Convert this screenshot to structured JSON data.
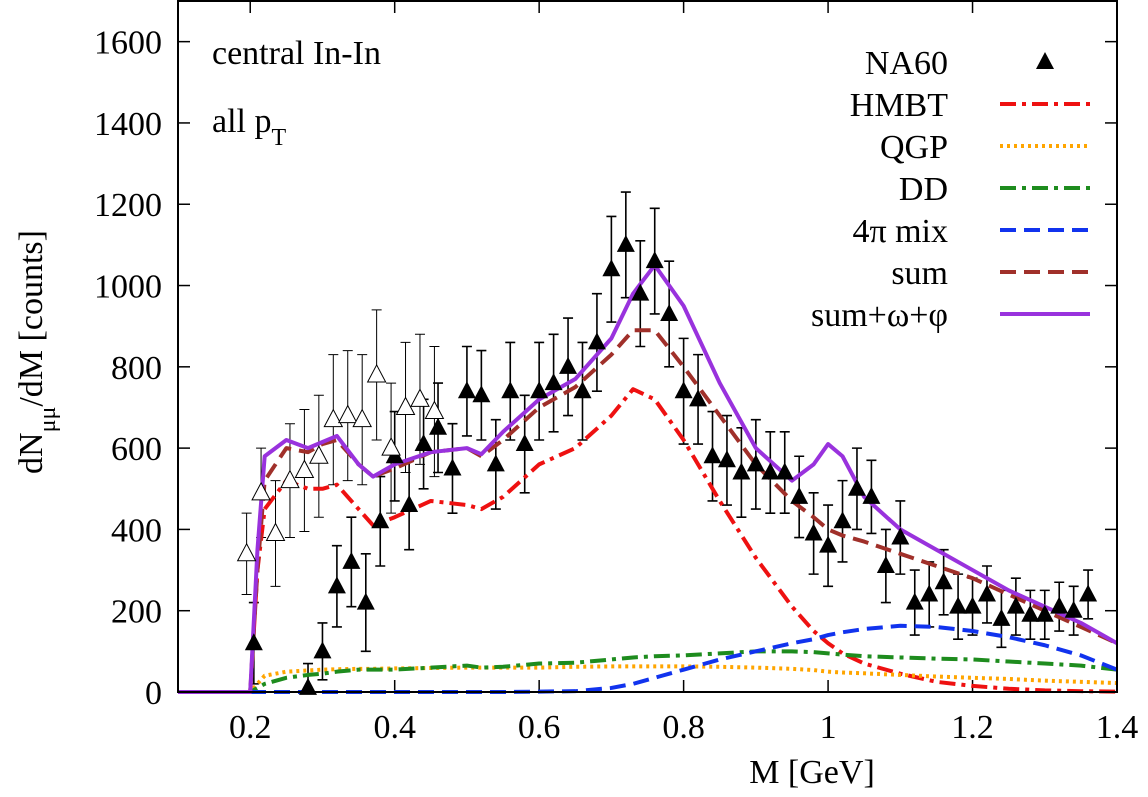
{
  "chart_data": {
    "type": "line",
    "xlabel": "M [GeV]",
    "ylabel": {
      "main": "dN",
      "sub": "μμ",
      "rest": "/dM [counts]"
    },
    "annotations": [
      {
        "text": "central In-In"
      },
      {
        "text": "all p",
        "sub": "T"
      }
    ],
    "xlim": [
      0.1,
      1.4
    ],
    "xticks": [
      0.2,
      0.4,
      0.6,
      0.8,
      1,
      1.2,
      1.4
    ],
    "ylim": [
      0,
      1700
    ],
    "yticks": [
      0,
      200,
      400,
      600,
      800,
      1000,
      1200,
      1400,
      1600
    ],
    "legend": "top-right",
    "x": [
      0.1,
      0.15,
      0.2,
      0.21,
      0.22,
      0.25,
      0.28,
      0.3,
      0.32,
      0.35,
      0.37,
      0.4,
      0.45,
      0.5,
      0.52,
      0.55,
      0.6,
      0.65,
      0.7,
      0.73,
      0.76,
      0.8,
      0.85,
      0.9,
      0.95,
      0.98,
      1.0,
      1.02,
      1.05,
      1.1,
      1.15,
      1.2,
      1.25,
      1.3,
      1.35,
      1.4
    ],
    "points": [
      {
        "name": "NA60",
        "marker": "filled",
        "color": "#000000",
        "x": [
          0.205,
          0.28,
          0.3,
          0.32,
          0.34,
          0.36,
          0.38,
          0.4,
          0.42,
          0.44,
          0.46,
          0.48,
          0.5,
          0.52,
          0.54,
          0.56,
          0.58,
          0.6,
          0.62,
          0.64,
          0.66,
          0.68,
          0.7,
          0.72,
          0.74,
          0.76,
          0.78,
          0.8,
          0.82,
          0.84,
          0.86,
          0.88,
          0.9,
          0.92,
          0.94,
          0.96,
          0.98,
          1.0,
          1.02,
          1.04,
          1.06,
          1.08,
          1.1,
          1.12,
          1.14,
          1.16,
          1.18,
          1.2,
          1.22,
          1.24,
          1.26,
          1.28,
          1.3,
          1.32,
          1.34,
          1.36
        ],
        "values": [
          120,
          10,
          100,
          260,
          320,
          220,
          420,
          580,
          460,
          610,
          650,
          550,
          740,
          730,
          560,
          740,
          610,
          740,
          760,
          800,
          740,
          860,
          1040,
          1100,
          980,
          1060,
          930,
          740,
          720,
          580,
          570,
          540,
          560,
          540,
          540,
          480,
          390,
          360,
          420,
          500,
          480,
          310,
          380,
          220,
          240,
          270,
          210,
          210,
          240,
          180,
          210,
          190,
          190,
          210,
          200,
          240
        ],
        "errors": [
          100,
          60,
          70,
          100,
          110,
          120,
          110,
          110,
          110,
          110,
          110,
          110,
          110,
          110,
          110,
          120,
          120,
          120,
          120,
          120,
          120,
          120,
          130,
          130,
          130,
          130,
          130,
          130,
          110,
          110,
          110,
          110,
          110,
          100,
          100,
          100,
          100,
          100,
          100,
          100,
          90,
          90,
          90,
          80,
          80,
          80,
          80,
          70,
          70,
          70,
          70,
          60,
          60,
          60,
          60,
          60
        ]
      },
      {
        "marker": "open",
        "color": "#000000",
        "x": [
          0.195,
          0.215,
          0.235,
          0.255,
          0.275,
          0.295,
          0.315,
          0.335,
          0.355,
          0.375,
          0.395,
          0.415,
          0.435,
          0.455
        ],
        "values": [
          340,
          490,
          390,
          520,
          545,
          580,
          670,
          680,
          670,
          780,
          600,
          700,
          720,
          690
        ],
        "errors": [
          100,
          110,
          130,
          140,
          150,
          150,
          160,
          160,
          160,
          160,
          160,
          160,
          160,
          160
        ]
      }
    ],
    "series": [
      {
        "name": "HMBT",
        "color": "#ee1111",
        "style": "dash-dot",
        "values": [
          0,
          0,
          0,
          300,
          450,
          520,
          500,
          500,
          510,
          450,
          410,
          430,
          470,
          460,
          450,
          480,
          560,
          600,
          680,
          745,
          720,
          620,
          470,
          330,
          210,
          150,
          120,
          95,
          70,
          45,
          25,
          15,
          8,
          4,
          2,
          1
        ]
      },
      {
        "name": "QGP",
        "color": "#ffa500",
        "style": "dotted",
        "values": [
          0,
          0,
          0,
          20,
          40,
          50,
          53,
          55,
          56,
          57,
          57,
          58,
          59,
          60,
          60,
          60,
          60,
          62,
          63,
          63,
          63,
          63,
          62,
          60,
          57,
          54,
          50,
          48,
          46,
          42,
          38,
          35,
          32,
          28,
          25,
          22
        ]
      },
      {
        "name": "DD",
        "color": "#1e8c1e",
        "style": "dash-dot",
        "values": [
          0,
          0,
          0,
          10,
          20,
          35,
          42,
          45,
          50,
          55,
          55,
          55,
          60,
          65,
          60,
          62,
          70,
          72,
          80,
          85,
          88,
          90,
          95,
          100,
          100,
          98,
          95,
          92,
          88,
          85,
          82,
          80,
          75,
          70,
          65,
          55
        ]
      },
      {
        "name": "4π mix",
        "color": "#1133ee",
        "style": "dashed",
        "values": [
          0,
          0,
          0,
          0,
          0,
          0,
          0,
          0,
          0,
          0,
          0,
          0,
          0,
          0,
          0,
          0,
          1,
          2,
          10,
          20,
          35,
          55,
          80,
          100,
          120,
          130,
          140,
          147,
          155,
          163,
          160,
          150,
          135,
          115,
          90,
          55
        ]
      },
      {
        "name": "sum",
        "color": "#a0302a",
        "style": "dashed",
        "values": [
          0,
          0,
          0,
          300,
          520,
          600,
          590,
          610,
          620,
          560,
          530,
          550,
          590,
          600,
          580,
          620,
          700,
          750,
          830,
          890,
          890,
          800,
          680,
          560,
          470,
          430,
          400,
          385,
          370,
          340,
          310,
          280,
          240,
          200,
          160,
          120
        ]
      },
      {
        "name": "sum+ω+φ",
        "color": "#9932dd",
        "style": "solid",
        "values": [
          0,
          0,
          0,
          350,
          580,
          620,
          600,
          615,
          630,
          560,
          530,
          560,
          590,
          600,
          585,
          640,
          720,
          770,
          870,
          980,
          1050,
          950,
          760,
          600,
          520,
          560,
          610,
          580,
          480,
          400,
          350,
          300,
          250,
          210,
          170,
          120
        ]
      }
    ]
  }
}
